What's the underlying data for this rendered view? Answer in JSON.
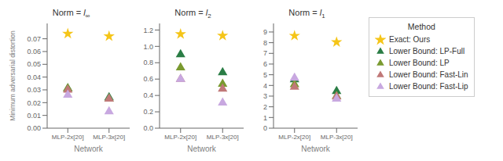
{
  "chart_data": [
    {
      "type": "scatter",
      "title": "Norm = l∞",
      "xlabel": "Network",
      "ylabel": "Minimum adversarial distortion",
      "categories": [
        "MLP-2x[20]",
        "MLP-3x[20]"
      ],
      "ylim": [
        0.0,
        0.082
      ],
      "yticks": [
        {
          "value": 0.0,
          "label": "0.00"
        },
        0.01,
        0.02,
        0.03,
        0.04,
        0.05,
        0.06,
        0.07
      ],
      "series": [
        {
          "name": "Exact: Ours",
          "color": "#f5c518",
          "marker": "star",
          "values": [
            0.074,
            0.072
          ]
        },
        {
          "name": "Lower Bound: LP-Full",
          "color": "#2a7d45",
          "marker": "triangle",
          "values": [
            0.031,
            0.024
          ]
        },
        {
          "name": "Lower Bound: LP",
          "color": "#7a9a30",
          "marker": "triangle",
          "values": [
            0.031,
            0.023
          ]
        },
        {
          "name": "Lower Bound: Fast-Lin",
          "color": "#c07878",
          "marker": "triangle",
          "values": [
            0.03,
            0.023
          ]
        },
        {
          "name": "Lower Bound: Fast-Lip",
          "color": "#c8a8e0",
          "marker": "triangle",
          "values": [
            0.026,
            0.013
          ]
        }
      ]
    },
    {
      "type": "scatter",
      "title": "Norm = l2",
      "xlabel": "Network",
      "categories": [
        "MLP-2x[20]",
        "MLP-3x[20]"
      ],
      "ylim": [
        0.0,
        1.28
      ],
      "yticks": [
        {
          "value": 0.0,
          "label": "0.0"
        },
        0.2,
        0.4,
        0.6,
        0.8,
        {
          "value": 1.0,
          "label": "1.0"
        },
        1.2
      ],
      "series": [
        {
          "name": "Exact: Ours",
          "color": "#f5c518",
          "marker": "star",
          "values": [
            1.15,
            1.13
          ]
        },
        {
          "name": "Lower Bound: LP-Full",
          "color": "#2a7d45",
          "marker": "triangle",
          "values": [
            0.9,
            0.68
          ]
        },
        {
          "name": "Lower Bound: LP",
          "color": "#7a9a30",
          "marker": "triangle",
          "values": [
            0.74,
            0.54
          ]
        },
        {
          "name": "Lower Bound: Fast-Lin",
          "color": "#c07878",
          "marker": "triangle",
          "values": [
            0.6,
            0.48
          ]
        },
        {
          "name": "Lower Bound: Fast-Lip",
          "color": "#c8a8e0",
          "marker": "triangle",
          "values": [
            0.6,
            0.31
          ]
        }
      ]
    },
    {
      "type": "scatter",
      "title": "Norm = l1",
      "xlabel": "Network",
      "categories": [
        "MLP-2x[20]",
        "MLP-3x[20]"
      ],
      "ylim": [
        0.0,
        9.8
      ],
      "yticks": [
        0,
        1,
        2,
        3,
        4,
        5,
        6,
        7,
        8,
        9
      ],
      "legend": "right",
      "legend_title": "Method",
      "series": [
        {
          "name": "Exact: Ours",
          "color": "#f5c518",
          "marker": "star",
          "values": [
            8.65,
            8.05
          ]
        },
        {
          "name": "Lower Bound: LP-Full",
          "color": "#2a7d45",
          "marker": "triangle",
          "values": [
            4.55,
            3.45
          ]
        },
        {
          "name": "Lower Bound: LP",
          "color": "#7a9a30",
          "marker": "triangle",
          "values": [
            4.1,
            3.0
          ]
        },
        {
          "name": "Lower Bound: Fast-Lin",
          "color": "#c07878",
          "marker": "triangle",
          "values": [
            3.85,
            2.95
          ]
        },
        {
          "name": "Lower Bound: Fast-Lip",
          "color": "#c8a8e0",
          "marker": "triangle",
          "values": [
            4.7,
            2.75
          ]
        }
      ]
    }
  ]
}
